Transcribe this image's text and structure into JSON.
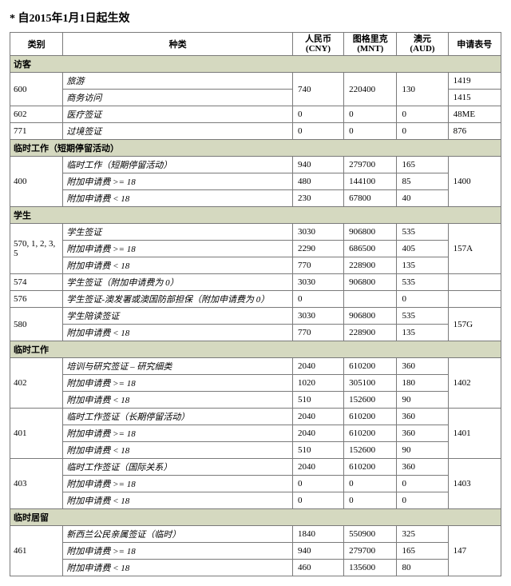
{
  "title": "自2015年1月1日起生效",
  "marker": "*",
  "headers": {
    "category": "类别",
    "kind": "种类",
    "cny": "人民币",
    "cny_sub": "(CNY)",
    "mnt": "图格里克",
    "mnt_sub": "(MNT)",
    "aud": "澳元",
    "aud_sub": "(AUD)",
    "form": "申请表号"
  },
  "sections": {
    "visitor": "访客",
    "tmpwork_short": "临时工作（短期停留活动）",
    "student": "学生",
    "tmpwork": "临时工作",
    "tmpstay": "临时居留"
  },
  "rows": {
    "r600a": {
      "cat": "600",
      "kind": "旅游",
      "cny": "740",
      "mnt": "220400",
      "aud": "130",
      "form": "1419"
    },
    "r600b": {
      "kind": "商务访问",
      "form": "1415"
    },
    "r602": {
      "cat": "602",
      "kind": "医疗签证",
      "cny": "0",
      "mnt": "0",
      "aud": "0",
      "form": "48ME"
    },
    "r771": {
      "cat": "771",
      "kind": "过境签证",
      "cny": "0",
      "mnt": "0",
      "aud": "0",
      "form": "876"
    },
    "r400a": {
      "cat": "400",
      "kind": "临时工作（短期停留活动）",
      "cny": "940",
      "mnt": "279700",
      "aud": "165",
      "form": "1400"
    },
    "r400b": {
      "kind": "附加申请费 >= 18",
      "cny": "480",
      "mnt": "144100",
      "aud": "85"
    },
    "r400c": {
      "kind": "附加申请费 < 18",
      "cny": "230",
      "mnt": "67800",
      "aud": "40"
    },
    "r570a": {
      "cat": "570, 1, 2, 3, 5",
      "kind": "学生签证",
      "cny": "3030",
      "mnt": "906800",
      "aud": "535",
      "form": "157A"
    },
    "r570b": {
      "kind": "附加申请费 >= 18",
      "cny": "2290",
      "mnt": "686500",
      "aud": "405"
    },
    "r570c": {
      "kind": "附加申请费 < 18",
      "cny": "770",
      "mnt": "228900",
      "aud": "135"
    },
    "r574": {
      "cat": "574",
      "kind": "学生签证（附加申请费为 0）",
      "cny": "3030",
      "mnt": "906800",
      "aud": "535",
      "form": ""
    },
    "r576": {
      "cat": "576",
      "kind": "学生签证-澳发署或澳国防部担保（附加申请费为 0）",
      "cny": "0",
      "mnt": "",
      "aud": "0",
      "form": ""
    },
    "r580a": {
      "cat": "580",
      "kind": "学生陪读签证",
      "cny": "3030",
      "mnt": "906800",
      "aud": "535",
      "form": "157G"
    },
    "r580b": {
      "kind": "附加申请费 < 18",
      "cny": "770",
      "mnt": "228900",
      "aud": "135"
    },
    "r402a": {
      "cat": "402",
      "kind": "培训与研究签证 – 研究细类",
      "cny": "2040",
      "mnt": "610200",
      "aud": "360",
      "form": "1402"
    },
    "r402b": {
      "kind": "附加申请费 >= 18",
      "cny": "1020",
      "mnt": "305100",
      "aud": "180"
    },
    "r402c": {
      "kind": "附加申请费 < 18",
      "cny": "510",
      "mnt": "152600",
      "aud": "90"
    },
    "r401a": {
      "cat": "401",
      "kind": "临时工作签证（长期停留活动）",
      "cny": "2040",
      "mnt": "610200",
      "aud": "360",
      "form": "1401"
    },
    "r401b": {
      "kind": "附加申请费 >= 18",
      "cny": "2040",
      "mnt": "610200",
      "aud": "360"
    },
    "r401c": {
      "kind": "附加申请费 < 18",
      "cny": "510",
      "mnt": "152600",
      "aud": "90"
    },
    "r403a": {
      "cat": "403",
      "kind": "临时工作签证（国际关系）",
      "cny": "2040",
      "mnt": "610200",
      "aud": "360",
      "form": "1403"
    },
    "r403b": {
      "kind": "附加申请费 >= 18",
      "cny": "0",
      "mnt": "0",
      "aud": "0"
    },
    "r403c": {
      "kind": "附加申请费 < 18",
      "cny": "0",
      "mnt": "0",
      "aud": "0"
    },
    "r461a": {
      "cat": "461",
      "kind": "新西兰公民亲属签证（临时）",
      "cny": "1840",
      "mnt": "550900",
      "aud": "325",
      "form": "147"
    },
    "r461b": {
      "kind": "附加申请费 >= 18",
      "cny": "940",
      "mnt": "279700",
      "aud": "165"
    },
    "r461c": {
      "kind": "附加申请费 < 18",
      "cny": "460",
      "mnt": "135600",
      "aud": "80"
    }
  },
  "colors": {
    "section_bg": "#d5d9c0",
    "border": "#7a7a7a",
    "text": "#000000",
    "bg": "#ffffff"
  }
}
